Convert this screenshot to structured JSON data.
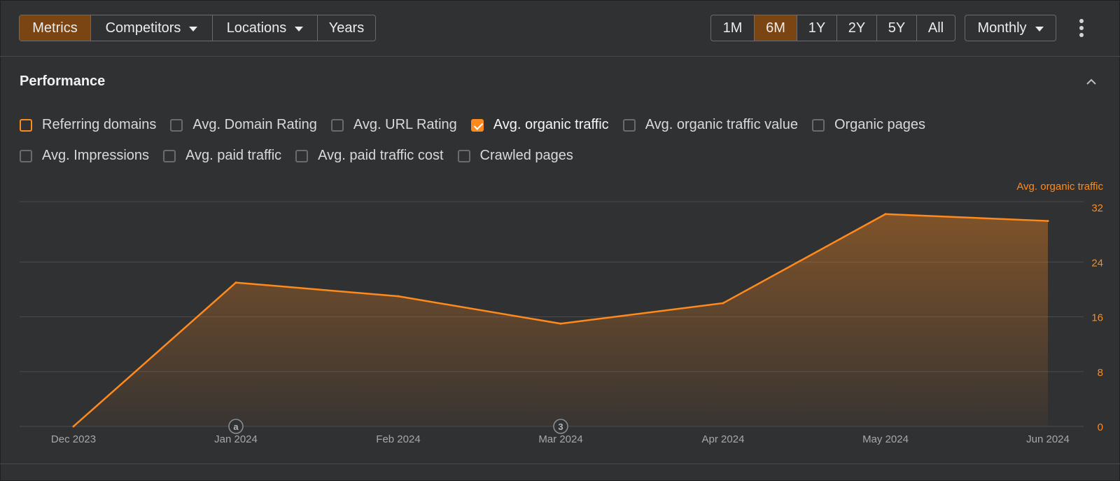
{
  "toolbar": {
    "left_tabs": [
      {
        "label": "Metrics",
        "active": true,
        "dropdown": false
      },
      {
        "label": "Competitors",
        "active": false,
        "dropdown": true
      },
      {
        "label": "Locations",
        "active": false,
        "dropdown": true
      },
      {
        "label": "Years",
        "active": false,
        "dropdown": false
      }
    ],
    "ranges": [
      {
        "label": "1M",
        "active": false
      },
      {
        "label": "6M",
        "active": true
      },
      {
        "label": "1Y",
        "active": false
      },
      {
        "label": "2Y",
        "active": false
      },
      {
        "label": "5Y",
        "active": false
      },
      {
        "label": "All",
        "active": false
      }
    ],
    "interval": "Monthly"
  },
  "section": {
    "title": "Performance",
    "metric_rows": [
      [
        {
          "label": "Referring domains",
          "checked": false,
          "highlight": true
        },
        {
          "label": "Avg. Domain Rating",
          "checked": false
        },
        {
          "label": "Avg. URL Rating",
          "checked": false
        },
        {
          "label": "Avg. organic traffic",
          "checked": true
        },
        {
          "label": "Avg. organic traffic value",
          "checked": false
        },
        {
          "label": "Organic pages",
          "checked": false
        }
      ],
      [
        {
          "label": "Avg. Impressions",
          "checked": false
        },
        {
          "label": "Avg. paid traffic",
          "checked": false
        },
        {
          "label": "Avg. paid traffic cost",
          "checked": false
        },
        {
          "label": "Crawled pages",
          "checked": false
        }
      ]
    ]
  },
  "colors": {
    "accent": "#ff8a1c",
    "active_tab": "#7a4513",
    "background": "#303133"
  },
  "chart_data": {
    "type": "area",
    "series": [
      {
        "name": "Avg. organic traffic",
        "values": [
          0,
          21,
          19,
          15,
          18,
          31,
          30
        ]
      }
    ],
    "categories": [
      "Dec 2023",
      "Jan 2024",
      "Feb 2024",
      "Mar 2024",
      "Apr 2024",
      "May 2024",
      "Jun 2024"
    ],
    "y_ticks": [
      0,
      8,
      16,
      24,
      32
    ],
    "ylim": [
      0,
      32
    ],
    "ylabel": "Avg. organic traffic",
    "grid": true,
    "annotations": [
      {
        "x": "Jan 2024",
        "label": "a"
      },
      {
        "x": "Mar 2024",
        "label": "3"
      }
    ]
  }
}
